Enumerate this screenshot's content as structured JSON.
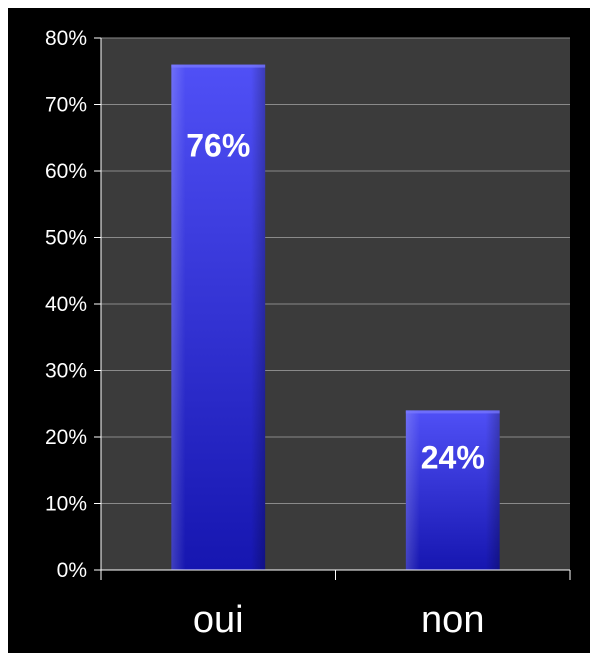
{
  "chart_data": {
    "type": "bar",
    "title": "",
    "xlabel": "",
    "ylabel": "",
    "categories": [
      "oui",
      "non"
    ],
    "values": [
      76,
      24
    ],
    "data_labels": [
      "76%",
      "24%"
    ],
    "ylim": [
      0,
      80
    ],
    "yticks": [
      0,
      10,
      20,
      30,
      40,
      50,
      60,
      70,
      80
    ],
    "ytick_labels": [
      "0%",
      "10%",
      "20%",
      "30%",
      "40%",
      "50%",
      "60%",
      "70%",
      "80%"
    ],
    "grid": true,
    "legend": "none",
    "colors": {
      "background": "#000000",
      "plot_area": "#3b3b3b",
      "gridline": "#8a8a8a",
      "bar_top": "#4c4cf4",
      "bar_bottom": "#1a1ab8",
      "text": "#ffffff"
    }
  }
}
